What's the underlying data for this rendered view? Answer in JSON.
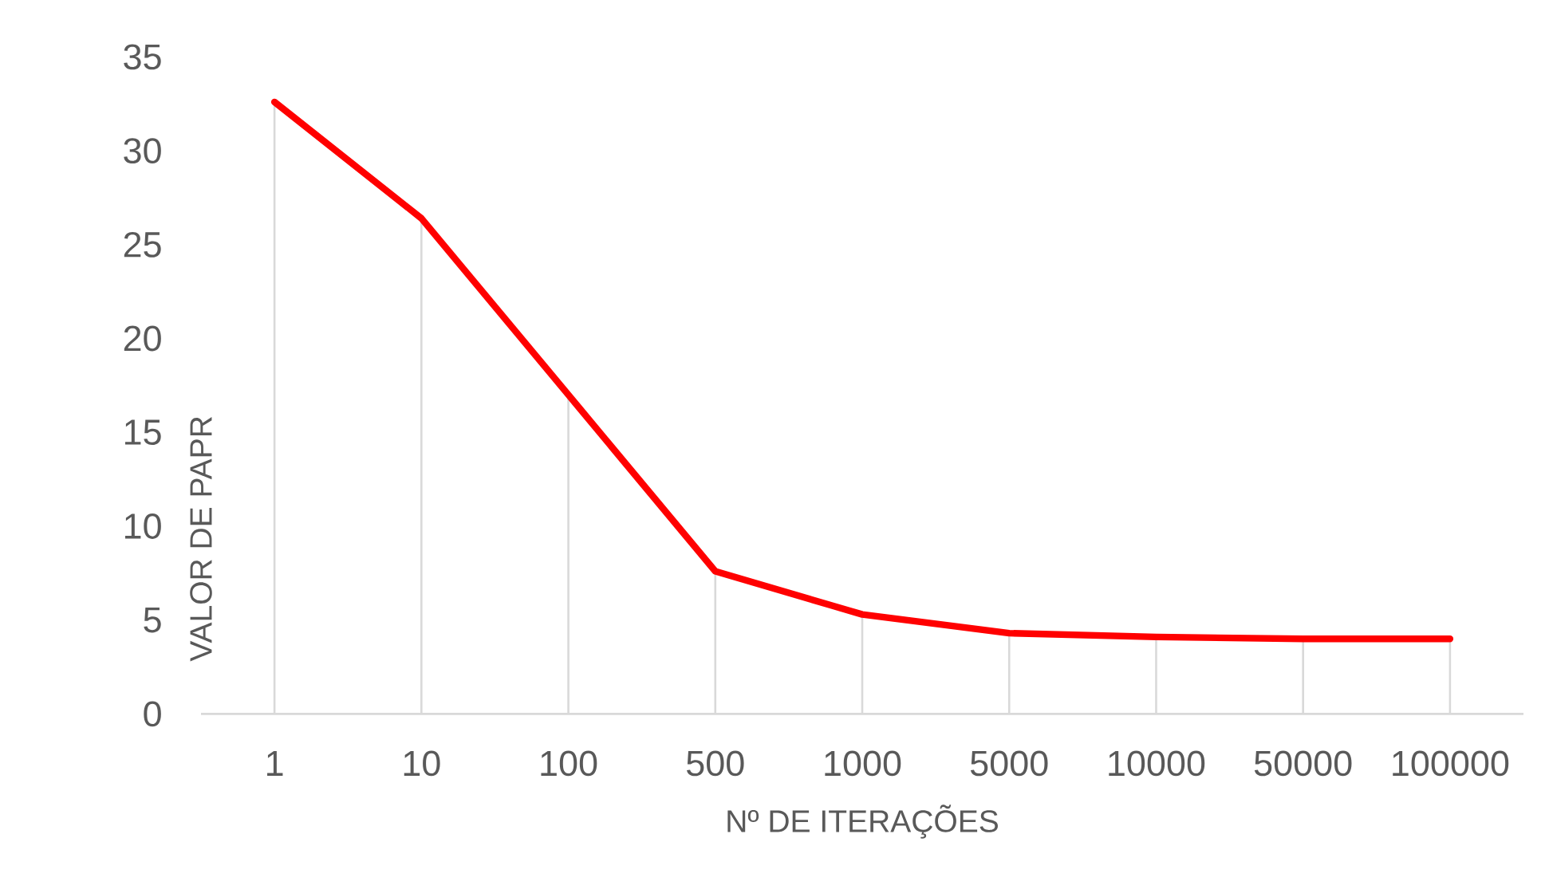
{
  "chart_data": {
    "type": "line",
    "xlabel": "Nº DE ITERAÇÕES",
    "ylabel": "VALOR DE PAPR",
    "categories": [
      "1",
      "10",
      "100",
      "500",
      "1000",
      "5000",
      "10000",
      "50000",
      "100000"
    ],
    "series": [
      {
        "type": "bar",
        "color": "#d9d9d9",
        "values": [
          32.6,
          26.4,
          17.0,
          7.6,
          5.3,
          4.3,
          4.1,
          4.0,
          4.0
        ]
      },
      {
        "color": "#ff0000",
        "values": [
          32.6,
          26.4,
          17.0,
          7.6,
          5.3,
          4.3,
          4.1,
          4.0,
          4.0
        ]
      }
    ],
    "ylim": [
      0,
      35
    ],
    "yticks": [
      0,
      5,
      10,
      15,
      20,
      25,
      30,
      35
    ],
    "marker": "none",
    "line_style": "solid"
  }
}
